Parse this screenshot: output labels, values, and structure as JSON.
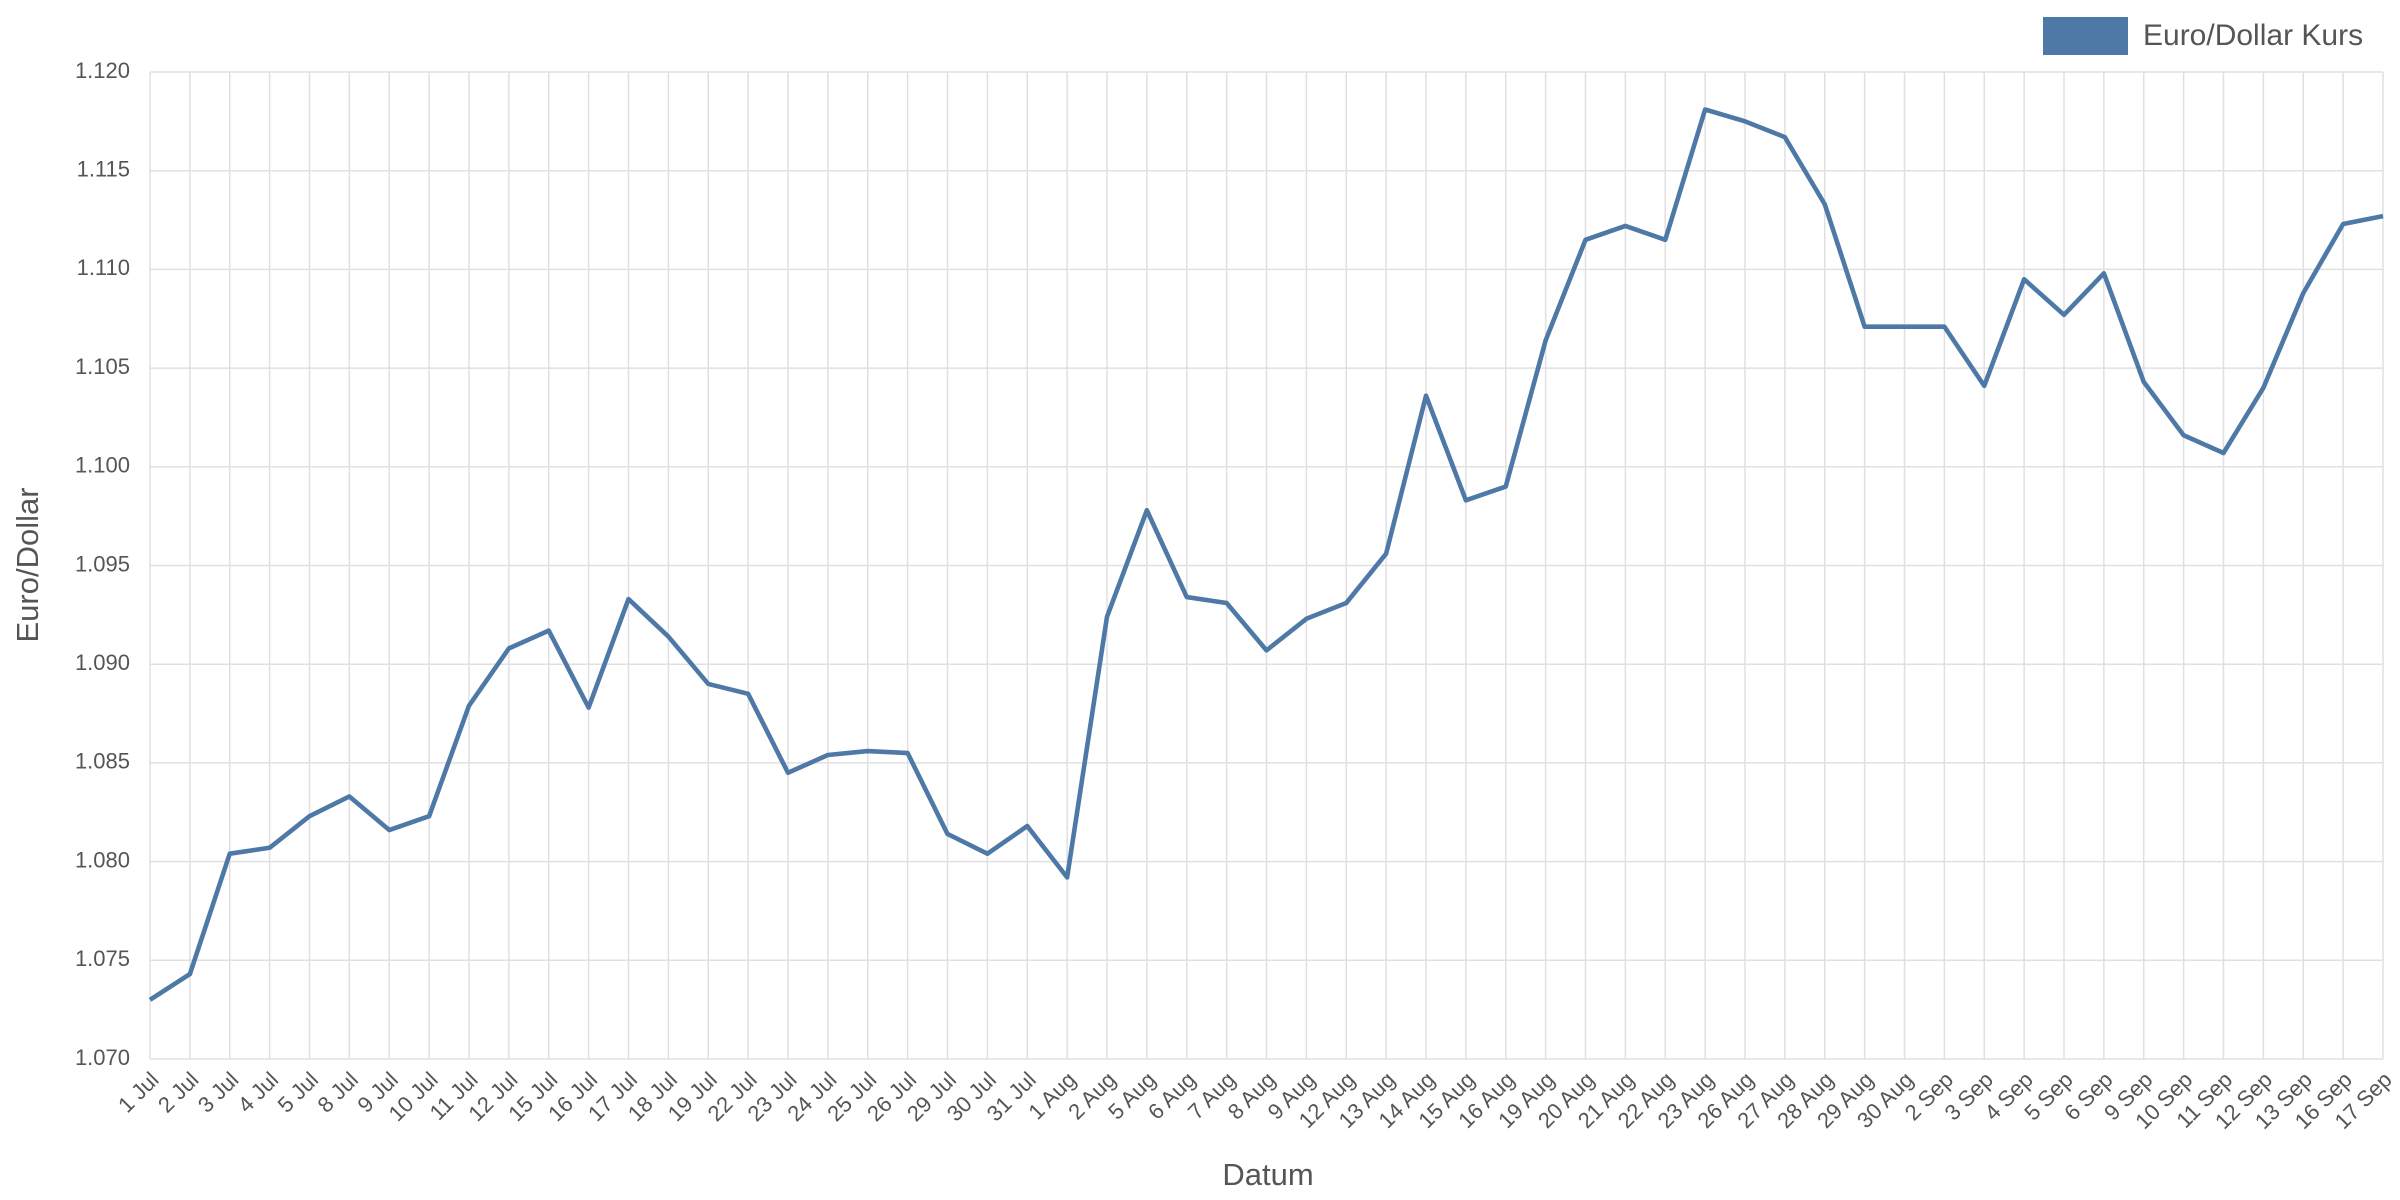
{
  "chart_data": {
    "type": "line",
    "x_label": "Datum",
    "y_label": "Euro/Dollar",
    "categories": [
      "1 Jul",
      "2 Jul",
      "3 Jul",
      "4 Jul",
      "5 Jul",
      "8 Jul",
      "9 Jul",
      "10 Jul",
      "11 Jul",
      "12 Jul",
      "15 Jul",
      "16 Jul",
      "17 Jul",
      "18 Jul",
      "19 Jul",
      "22 Jul",
      "23 Jul",
      "24 Jul",
      "25 Jul",
      "26 Jul",
      "29 Jul",
      "30 Jul",
      "31 Jul",
      "1 Aug",
      "2 Aug",
      "5 Aug",
      "6 Aug",
      "7 Aug",
      "8 Aug",
      "9 Aug",
      "12 Aug",
      "13 Aug",
      "14 Aug",
      "15 Aug",
      "16 Aug",
      "19 Aug",
      "20 Aug",
      "21 Aug",
      "22 Aug",
      "23 Aug",
      "26 Aug",
      "27 Aug",
      "28 Aug",
      "29 Aug",
      "30 Aug",
      "2 Sep",
      "3 Sep",
      "4 Sep",
      "5 Sep",
      "6 Sep",
      "9 Sep",
      "10 Sep",
      "11 Sep",
      "12 Sep",
      "13 Sep",
      "16 Sep",
      "17 Sep"
    ],
    "series": [
      {
        "name": "Euro/Dollar Kurs",
        "color": "#4e79a7",
        "values": [
          1.073,
          1.0743,
          1.0804,
          1.0807,
          1.0823,
          1.0833,
          1.0816,
          1.0823,
          1.0879,
          1.0908,
          1.0917,
          1.0878,
          1.0933,
          1.0914,
          1.089,
          1.0885,
          1.0845,
          1.0854,
          1.0856,
          1.0855,
          1.0814,
          1.0804,
          1.0818,
          1.0792,
          1.0924,
          1.0978,
          1.0934,
          1.0931,
          1.0907,
          1.0923,
          1.0931,
          1.0956,
          1.1036,
          1.0983,
          1.099,
          1.1064,
          1.1115,
          1.1122,
          1.1115,
          1.1181,
          1.1175,
          1.1167,
          1.1133,
          1.1071,
          1.1071,
          1.1071,
          1.1041,
          1.1095,
          1.1077,
          1.1098,
          1.1043,
          1.1016,
          1.1007,
          1.104,
          1.1088,
          1.1123,
          1.1127
        ]
      }
    ],
    "ylim": [
      1.07,
      1.12
    ],
    "yticks": [
      {
        "value": 1.07,
        "label": "1.070"
      },
      {
        "value": 1.075,
        "label": "1.075"
      },
      {
        "value": 1.08,
        "label": "1.080"
      },
      {
        "value": 1.085,
        "label": "1.085"
      },
      {
        "value": 1.09,
        "label": "1.090"
      },
      {
        "value": 1.095,
        "label": "1.095"
      },
      {
        "value": 1.1,
        "label": "1.100"
      },
      {
        "value": 1.105,
        "label": "1.105"
      },
      {
        "value": 1.11,
        "label": "1.110"
      },
      {
        "value": 1.115,
        "label": "1.115"
      },
      {
        "value": 1.12,
        "label": "1.120"
      }
    ],
    "grid": true,
    "legend": "top-right"
  }
}
